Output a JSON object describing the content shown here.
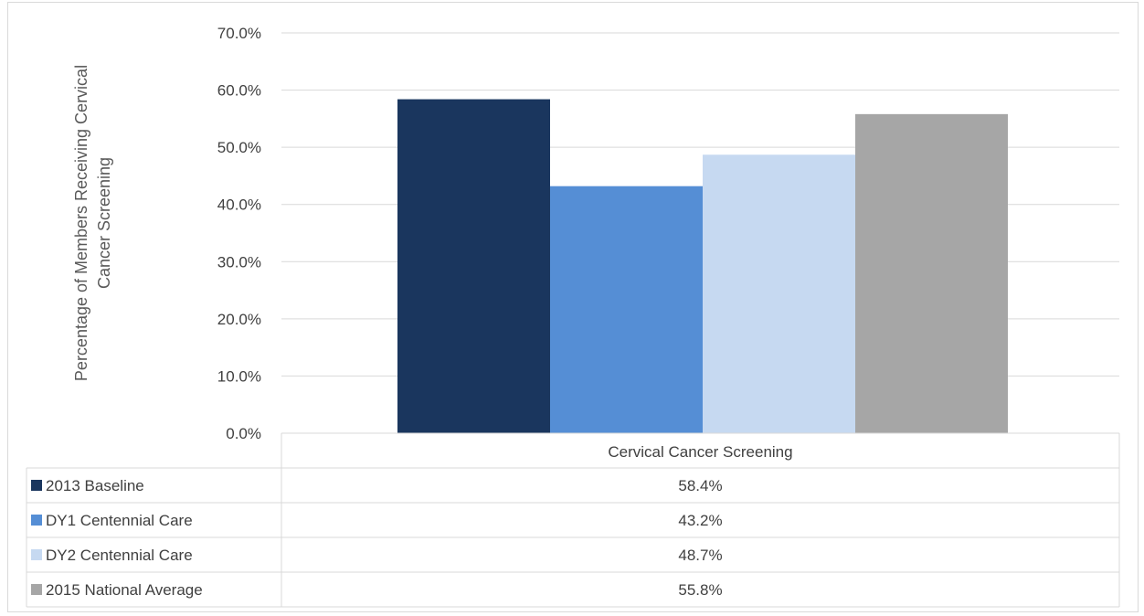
{
  "chart_data": {
    "type": "bar",
    "title": "",
    "xlabel": "",
    "ylabel": "Percentage of Members Receiving Cervical Cancer Screening",
    "ylabel_lines": [
      "Percentage of Members Receiving Cervical",
      "Cancer Screening"
    ],
    "categories": [
      "Cervical Cancer Screening"
    ],
    "ylim": [
      0,
      70
    ],
    "y_ticks": [
      "0.0%",
      "10.0%",
      "20.0%",
      "30.0%",
      "40.0%",
      "50.0%",
      "60.0%",
      "70.0%"
    ],
    "grid": true,
    "legend": "data-table",
    "series": [
      {
        "name": "2013 Baseline",
        "values": [
          58.4
        ],
        "label": "58.4%",
        "color": "#1a365e"
      },
      {
        "name": "DY1 Centennial Care",
        "values": [
          43.2
        ],
        "label": "43.2%",
        "color": "#558ed5"
      },
      {
        "name": "DY2 Centennial Care",
        "values": [
          48.7
        ],
        "label": "48.7%",
        "color": "#c6d9f1"
      },
      {
        "name": "2015 National Average",
        "values": [
          55.8
        ],
        "label": "55.8%",
        "color": "#a6a6a6"
      }
    ]
  }
}
